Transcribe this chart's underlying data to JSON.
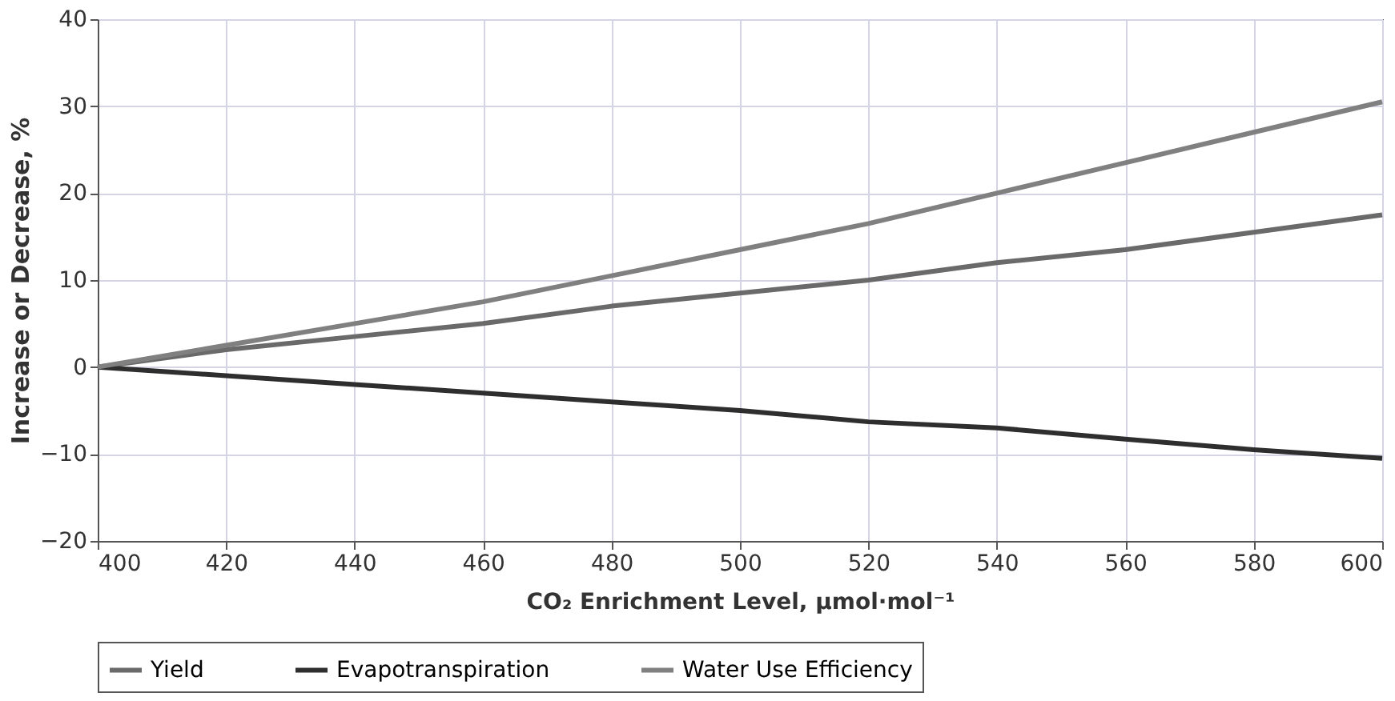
{
  "chart_data": {
    "type": "line",
    "x": [
      400,
      420,
      440,
      460,
      480,
      500,
      520,
      540,
      560,
      580,
      600
    ],
    "series": [
      {
        "name": "Yield",
        "color": "#6a6a6a",
        "values": [
          0,
          2,
          3.5,
          5,
          7,
          8.5,
          10,
          12,
          13.5,
          15.5,
          17.5
        ]
      },
      {
        "name": "Evapotranspiration",
        "color": "#2e2e2e",
        "values": [
          0,
          -1,
          -2,
          -3,
          -4,
          -5,
          -6.3,
          -7,
          -8.3,
          -9.5,
          -10.5
        ]
      },
      {
        "name": "Water Use Efficiency",
        "color": "#808080",
        "values": [
          0,
          2.5,
          5,
          7.5,
          10.5,
          13.5,
          16.5,
          20,
          23.5,
          27,
          30.5
        ]
      }
    ],
    "xlabel": "CO₂ Enrichment Level, μmol·mol⁻¹",
    "ylabel": "Increase or Decrease, %",
    "xlim": [
      400,
      600
    ],
    "xticks": [
      400,
      420,
      440,
      460,
      480,
      500,
      520,
      540,
      560,
      580,
      600
    ],
    "ylim": [
      -20,
      40
    ],
    "yticks": [
      -20,
      -10,
      0,
      10,
      20,
      30,
      40
    ],
    "grid": true,
    "legend": "bottom",
    "marker": "none",
    "line_style": "solid"
  }
}
